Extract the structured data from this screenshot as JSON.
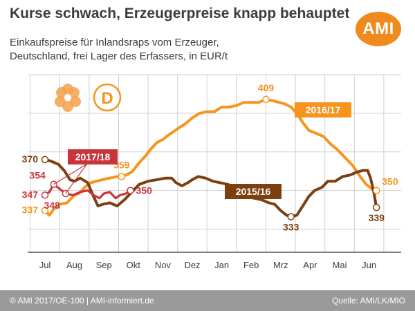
{
  "header": {
    "title": "Kurse schwach, Erzeugerpreise knapp behauptet",
    "subtitle_line1": "Einkaufspreise für Inlandsraps vom Erzeuger,",
    "subtitle_line2": "Deutschland, frei Lager des Erfassers, in EUR/t",
    "logo_text": "AMI"
  },
  "badge": {
    "letter": "D"
  },
  "footer": {
    "left": "© AMI 2017/OE-100 | AMI-informiert.de",
    "right": "Quelle: AMI/LK/MIO"
  },
  "colors": {
    "s2016": "#f7941d",
    "s2015": "#7b3f10",
    "s2017": "#c9343a",
    "grid": "#cfcfcf",
    "axis": "#555555",
    "text": "#3c3c3c"
  },
  "chart_data": {
    "type": "line",
    "xlabel": "",
    "ylabel": "",
    "ylim": [
      310,
      425
    ],
    "x_ticks": [
      "Jul",
      "Aug",
      "Sep",
      "Okt",
      "Nov",
      "Dez",
      "Jan",
      "Feb",
      "Mrz",
      "Apr",
      "Mai",
      "Jun"
    ],
    "grid": true,
    "series": [
      {
        "name": "2016/17",
        "key": "s2016",
        "points": [
          [
            0,
            337
          ],
          [
            0.15,
            334
          ],
          [
            0.3,
            338
          ],
          [
            0.5,
            341
          ],
          [
            0.75,
            342
          ],
          [
            1.0,
            347
          ],
          [
            1.15,
            348
          ],
          [
            1.35,
            352
          ],
          [
            1.55,
            355
          ],
          [
            1.75,
            356
          ],
          [
            1.95,
            357
          ],
          [
            2.2,
            358
          ],
          [
            2.45,
            359
          ],
          [
            2.6,
            359
          ],
          [
            2.75,
            360
          ],
          [
            2.95,
            362
          ],
          [
            3.2,
            368
          ],
          [
            3.4,
            372
          ],
          [
            3.6,
            377
          ],
          [
            3.8,
            381
          ],
          [
            4.0,
            383
          ],
          [
            4.2,
            386
          ],
          [
            4.5,
            390
          ],
          [
            4.75,
            393
          ],
          [
            5.0,
            397
          ],
          [
            5.25,
            400
          ],
          [
            5.5,
            401
          ],
          [
            5.75,
            401
          ],
          [
            6.0,
            404
          ],
          [
            6.25,
            404
          ],
          [
            6.5,
            405
          ],
          [
            6.75,
            407
          ],
          [
            7.0,
            407
          ],
          [
            7.25,
            407
          ],
          [
            7.5,
            409
          ],
          [
            7.75,
            408
          ],
          [
            7.95,
            407
          ],
          [
            8.15,
            406
          ],
          [
            8.35,
            404
          ],
          [
            8.55,
            400
          ],
          [
            8.75,
            394
          ],
          [
            8.95,
            389
          ],
          [
            9.2,
            387
          ],
          [
            9.45,
            385
          ],
          [
            9.7,
            380
          ],
          [
            9.95,
            376
          ],
          [
            10.2,
            371
          ],
          [
            10.45,
            366
          ],
          [
            10.7,
            359
          ],
          [
            10.9,
            354
          ],
          [
            11.1,
            351
          ],
          [
            11.25,
            350
          ]
        ]
      },
      {
        "name": "2015/16",
        "key": "s2015",
        "points": [
          [
            0,
            370
          ],
          [
            0.2,
            369
          ],
          [
            0.45,
            367
          ],
          [
            0.65,
            363
          ],
          [
            0.85,
            357
          ],
          [
            1.0,
            356
          ],
          [
            1.2,
            358
          ],
          [
            1.45,
            355
          ],
          [
            1.65,
            346
          ],
          [
            1.8,
            340
          ],
          [
            1.95,
            341
          ],
          [
            2.2,
            342
          ],
          [
            2.45,
            340
          ],
          [
            2.7,
            344
          ],
          [
            2.95,
            349
          ],
          [
            3.2,
            354
          ],
          [
            3.5,
            356
          ],
          [
            3.8,
            357
          ],
          [
            4.1,
            358
          ],
          [
            4.3,
            358
          ],
          [
            4.45,
            355
          ],
          [
            4.65,
            353
          ],
          [
            4.85,
            355
          ],
          [
            5.0,
            357
          ],
          [
            5.2,
            359
          ],
          [
            5.45,
            358
          ],
          [
            5.7,
            356
          ],
          [
            5.95,
            355
          ],
          [
            6.2,
            354
          ],
          [
            6.45,
            352
          ],
          [
            6.65,
            350
          ],
          [
            6.85,
            346
          ],
          [
            7.1,
            345
          ],
          [
            7.35,
            344
          ],
          [
            7.6,
            342
          ],
          [
            7.8,
            341
          ],
          [
            8.0,
            337
          ],
          [
            8.2,
            334
          ],
          [
            8.35,
            333
          ],
          [
            8.55,
            334
          ],
          [
            8.75,
            340
          ],
          [
            8.95,
            346
          ],
          [
            9.15,
            350
          ],
          [
            9.4,
            352
          ],
          [
            9.6,
            356
          ],
          [
            9.85,
            356
          ],
          [
            10.1,
            359
          ],
          [
            10.35,
            360
          ],
          [
            10.6,
            362
          ],
          [
            10.8,
            363
          ],
          [
            10.95,
            363
          ],
          [
            11.05,
            358
          ],
          [
            11.15,
            350
          ],
          [
            11.25,
            339
          ]
        ]
      },
      {
        "name": "2017/18",
        "key": "s2017",
        "points": [
          [
            0,
            347
          ],
          [
            0.15,
            349
          ],
          [
            0.3,
            354
          ],
          [
            0.5,
            351
          ],
          [
            0.7,
            348
          ],
          [
            0.95,
            347
          ],
          [
            1.2,
            349
          ],
          [
            1.45,
            350
          ],
          [
            1.65,
            347
          ],
          [
            1.85,
            345
          ],
          [
            2.0,
            348
          ],
          [
            2.2,
            349
          ],
          [
            2.4,
            345
          ],
          [
            2.55,
            347
          ],
          [
            2.75,
            348
          ],
          [
            2.9,
            350
          ]
        ]
      }
    ],
    "annotations": [
      {
        "series": "s2016",
        "x": 0,
        "y": 337,
        "text": "337"
      },
      {
        "series": "s2016",
        "x": 2.6,
        "y": 359,
        "text": "359"
      },
      {
        "series": "s2016",
        "x": 7.5,
        "y": 409,
        "text": "409"
      },
      {
        "series": "s2016",
        "x": 11.25,
        "y": 350,
        "text": "350"
      },
      {
        "series": "s2015",
        "x": 0,
        "y": 370,
        "text": "370"
      },
      {
        "series": "s2015",
        "x": 8.35,
        "y": 333,
        "text": "333"
      },
      {
        "series": "s2015",
        "x": 11.25,
        "y": 339,
        "text": "339"
      },
      {
        "series": "s2017",
        "x": 0,
        "y": 347,
        "text": "347"
      },
      {
        "series": "s2017",
        "x": 0.3,
        "y": 354,
        "text": "354"
      },
      {
        "series": "s2017",
        "x": 0.7,
        "y": 348,
        "text": "348"
      },
      {
        "series": "s2017",
        "x": 2.9,
        "y": 350,
        "text": "350"
      }
    ],
    "legend_labels": [
      {
        "series": "s2016",
        "text": "2016/17"
      },
      {
        "series": "s2015",
        "text": "2015/16"
      },
      {
        "series": "s2017",
        "text": "2017/18"
      }
    ]
  }
}
